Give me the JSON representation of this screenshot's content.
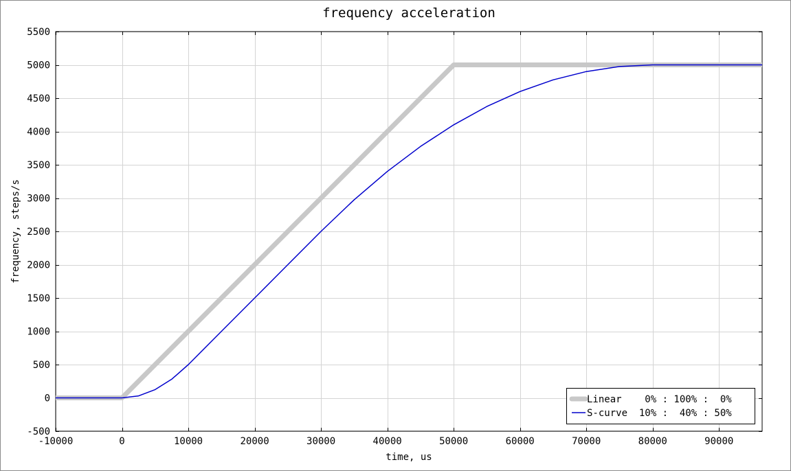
{
  "chart_data": {
    "type": "line",
    "title": "frequency acceleration",
    "xlabel": "time, us",
    "ylabel": "frequency, steps/s",
    "xlim": [
      -10000,
      96500
    ],
    "ylim": [
      -500,
      5500
    ],
    "xticks": [
      -10000,
      0,
      10000,
      20000,
      30000,
      40000,
      50000,
      60000,
      70000,
      80000,
      90000
    ],
    "yticks": [
      -500,
      0,
      500,
      1000,
      1500,
      2000,
      2500,
      3000,
      3500,
      4000,
      4500,
      5000,
      5500
    ],
    "grid": true,
    "legend_position": "bottom-right",
    "series": [
      {
        "name": "Linear    0% : 100% :  0%",
        "color": "#c8c8c8",
        "x": [
          -10000,
          0,
          50000,
          96500
        ],
        "y": [
          0,
          0,
          5000,
          5000
        ]
      },
      {
        "name": "S-curve  10% :  40% : 50%",
        "color": "#0000cc",
        "x": [
          -10000,
          0,
          2500,
          5000,
          7500,
          10000,
          15000,
          20000,
          25000,
          30000,
          35000,
          40000,
          45000,
          50000,
          55000,
          60000,
          65000,
          70000,
          75000,
          80000,
          96500
        ],
        "y": [
          0,
          0,
          30,
          125,
          280,
          500,
          1000,
          1500,
          2000,
          2500,
          2975,
          3400,
          3775,
          4100,
          4375,
          4600,
          4775,
          4900,
          4975,
          5000,
          5000
        ]
      }
    ]
  }
}
